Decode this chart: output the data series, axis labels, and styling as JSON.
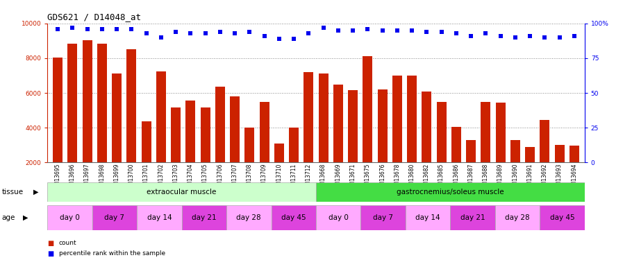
{
  "title": "GDS621 / D14048_at",
  "samples": [
    "GSM13695",
    "GSM13696",
    "GSM13697",
    "GSM13698",
    "GSM13699",
    "GSM13700",
    "GSM13701",
    "GSM13702",
    "GSM13703",
    "GSM13704",
    "GSM13705",
    "GSM13706",
    "GSM13707",
    "GSM13708",
    "GSM13709",
    "GSM13710",
    "GSM13711",
    "GSM13712",
    "GSM13668",
    "GSM13669",
    "GSM13671",
    "GSM13675",
    "GSM13676",
    "GSM13678",
    "GSM13680",
    "GSM13682",
    "GSM13685",
    "GSM13686",
    "GSM13687",
    "GSM13688",
    "GSM13689",
    "GSM13690",
    "GSM13691",
    "GSM13692",
    "GSM13693",
    "GSM13694"
  ],
  "counts": [
    8050,
    8850,
    9050,
    8850,
    7100,
    8500,
    4350,
    7250,
    5150,
    5550,
    5150,
    6350,
    5800,
    4000,
    5500,
    3080,
    4020,
    7200,
    7100,
    6500,
    6150,
    8100,
    6200,
    7000,
    7000,
    6100,
    5500,
    4050,
    3300,
    5500,
    5450,
    3300,
    2900,
    4450,
    3000,
    2980
  ],
  "percentile_ranks": [
    96,
    97,
    96,
    96,
    96,
    96,
    93,
    90,
    94,
    93,
    93,
    94,
    93,
    94,
    91,
    89,
    89,
    93,
    97,
    95,
    95,
    96,
    95,
    95,
    95,
    94,
    94,
    93,
    91,
    93,
    91,
    90,
    91,
    90,
    90,
    91
  ],
  "bar_color": "#cc2200",
  "dot_color": "#0000ee",
  "ylim_left": [
    2000,
    10000
  ],
  "ylim_right": [
    0,
    100
  ],
  "yticks_left": [
    2000,
    4000,
    6000,
    8000,
    10000
  ],
  "yticks_right": [
    0,
    25,
    50,
    75,
    100
  ],
  "grid_lines": [
    4000,
    6000,
    8000,
    10000
  ],
  "tissue_groups": [
    {
      "label": "extraocular muscle",
      "start": 0,
      "end": 18,
      "color": "#ccffcc"
    },
    {
      "label": "gastrocnemius/soleus muscle",
      "start": 18,
      "end": 36,
      "color": "#44dd44"
    }
  ],
  "age_groups": [
    {
      "label": "day 0",
      "start": 0,
      "end": 3,
      "color": "#ffaaff"
    },
    {
      "label": "day 7",
      "start": 3,
      "end": 6,
      "color": "#dd44dd"
    },
    {
      "label": "day 14",
      "start": 6,
      "end": 9,
      "color": "#ffaaff"
    },
    {
      "label": "day 21",
      "start": 9,
      "end": 12,
      "color": "#dd44dd"
    },
    {
      "label": "day 28",
      "start": 12,
      "end": 15,
      "color": "#ffaaff"
    },
    {
      "label": "day 45",
      "start": 15,
      "end": 18,
      "color": "#dd44dd"
    },
    {
      "label": "day 0",
      "start": 18,
      "end": 21,
      "color": "#ffaaff"
    },
    {
      "label": "day 7",
      "start": 21,
      "end": 24,
      "color": "#dd44dd"
    },
    {
      "label": "day 14",
      "start": 24,
      "end": 27,
      "color": "#ffaaff"
    },
    {
      "label": "day 21",
      "start": 27,
      "end": 30,
      "color": "#dd44dd"
    },
    {
      "label": "day 28",
      "start": 30,
      "end": 33,
      "color": "#ffaaff"
    },
    {
      "label": "day 45",
      "start": 33,
      "end": 36,
      "color": "#dd44dd"
    }
  ],
  "bg_color": "#ffffff",
  "grid_color": "#888888",
  "label_fontsize": 7.5,
  "tick_fontsize": 6.5,
  "sample_fontsize": 5.5
}
